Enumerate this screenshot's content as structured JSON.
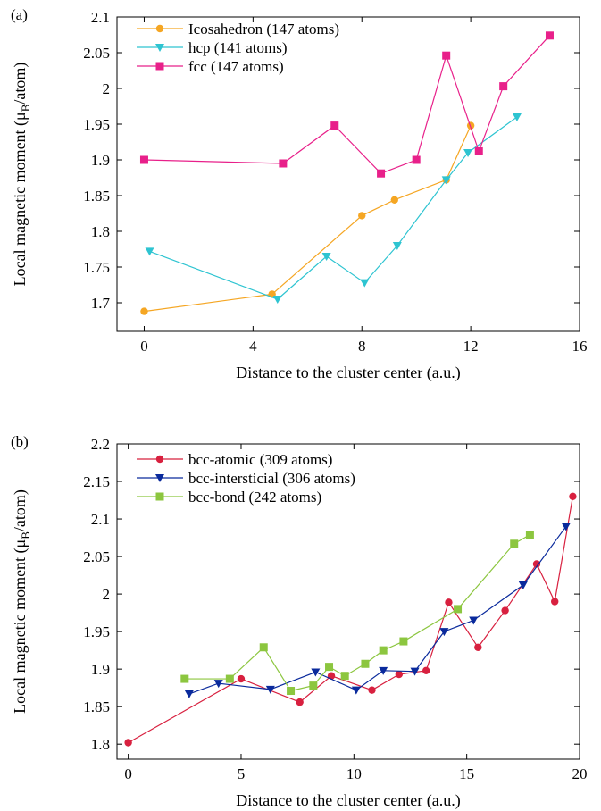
{
  "chart_data": [
    {
      "type": "line",
      "panel_label": "(a)",
      "xlabel": "Distance to the cluster center (a.u.)",
      "ylabel_main": "Local magnetic moment (μ",
      "ylabel_sub": "B",
      "ylabel_tail": "/atom)",
      "xlim": [
        -1,
        16
      ],
      "ylim": [
        1.66,
        2.1
      ],
      "xticks": [
        0,
        4,
        8,
        12,
        16
      ],
      "xtick_labels": [
        "0",
        "4",
        "8",
        "12",
        "16"
      ],
      "yticks": [
        1.7,
        1.75,
        1.8,
        1.85,
        1.9,
        1.95,
        2.0,
        2.05,
        2.1
      ],
      "ytick_labels": [
        "1.7",
        "1.75",
        "1.8",
        "1.85",
        "1.9",
        "1.95",
        "2",
        "2.05",
        "2.1"
      ],
      "legend_position": "top-left",
      "grid": false,
      "series": [
        {
          "name": "Icosahedron (147 atoms)",
          "color": "#f5a623",
          "marker": "circle",
          "x": [
            0.0,
            4.7,
            8.0,
            9.2,
            11.1,
            12.0
          ],
          "y": [
            1.688,
            1.712,
            1.822,
            1.844,
            1.872,
            1.948
          ]
        },
        {
          "name": "hcp (141 atoms)",
          "color": "#2ec4d1",
          "marker": "triangle-down",
          "x": [
            0.2,
            4.9,
            6.7,
            8.1,
            9.3,
            11.1,
            11.9,
            13.7
          ],
          "y": [
            1.772,
            1.705,
            1.765,
            1.728,
            1.78,
            1.872,
            1.91,
            1.96
          ]
        },
        {
          "name": "fcc (147 atoms)",
          "color": "#e8208a",
          "marker": "square",
          "x": [
            0.0,
            5.1,
            7.0,
            8.7,
            10.0,
            11.1,
            12.3,
            13.2,
            14.9
          ],
          "y": [
            1.9,
            1.895,
            1.948,
            1.881,
            1.9,
            2.046,
            1.912,
            2.003,
            2.074
          ]
        }
      ]
    },
    {
      "type": "line",
      "panel_label": "(b)",
      "xlabel": "Distance to the cluster center (a.u.)",
      "ylabel_main": "Local magnetic moment (μ",
      "ylabel_sub": "B",
      "ylabel_tail": "/atom)",
      "xlim": [
        -0.5,
        20
      ],
      "ylim": [
        1.78,
        2.2
      ],
      "xticks": [
        0,
        5,
        10,
        15,
        20
      ],
      "xtick_labels": [
        "0",
        "5",
        "10",
        "15",
        "20"
      ],
      "yticks": [
        1.8,
        1.85,
        1.9,
        1.95,
        2.0,
        2.05,
        2.1,
        2.15,
        2.2
      ],
      "ytick_labels": [
        "1.8",
        "1.85",
        "1.9",
        "1.95",
        "2",
        "2.05",
        "2.1",
        "2.15",
        "2.2"
      ],
      "legend_position": "top-left",
      "grid": false,
      "series": [
        {
          "name": "bcc-atomic (309 atoms)",
          "color": "#d8203f",
          "marker": "circle",
          "x": [
            0.0,
            5.0,
            7.6,
            9.0,
            10.8,
            12.0,
            13.2,
            14.2,
            15.5,
            16.7,
            18.1,
            18.9,
            19.7
          ],
          "y": [
            1.802,
            1.887,
            1.856,
            1.891,
            1.872,
            1.893,
            1.898,
            1.989,
            1.929,
            1.978,
            2.04,
            1.99,
            2.13
          ]
        },
        {
          "name": "bcc-intersticial (306 atoms)",
          "color": "#0a2a9c",
          "marker": "triangle-down",
          "x": [
            2.7,
            4.0,
            6.3,
            8.3,
            10.1,
            11.3,
            12.7,
            14.0,
            15.3,
            17.5,
            19.4
          ],
          "y": [
            1.867,
            1.881,
            1.873,
            1.896,
            1.872,
            1.898,
            1.897,
            1.95,
            1.965,
            2.012,
            2.09
          ]
        },
        {
          "name": "bcc-bond (242 atoms)",
          "color": "#8cc63f",
          "marker": "square",
          "x": [
            2.5,
            4.5,
            6.0,
            7.2,
            8.2,
            8.9,
            9.6,
            10.5,
            11.3,
            12.2,
            14.6,
            17.1,
            17.8
          ],
          "y": [
            1.887,
            1.887,
            1.929,
            1.871,
            1.878,
            1.903,
            1.891,
            1.907,
            1.925,
            1.937,
            1.98,
            2.067,
            2.079
          ]
        }
      ]
    }
  ]
}
